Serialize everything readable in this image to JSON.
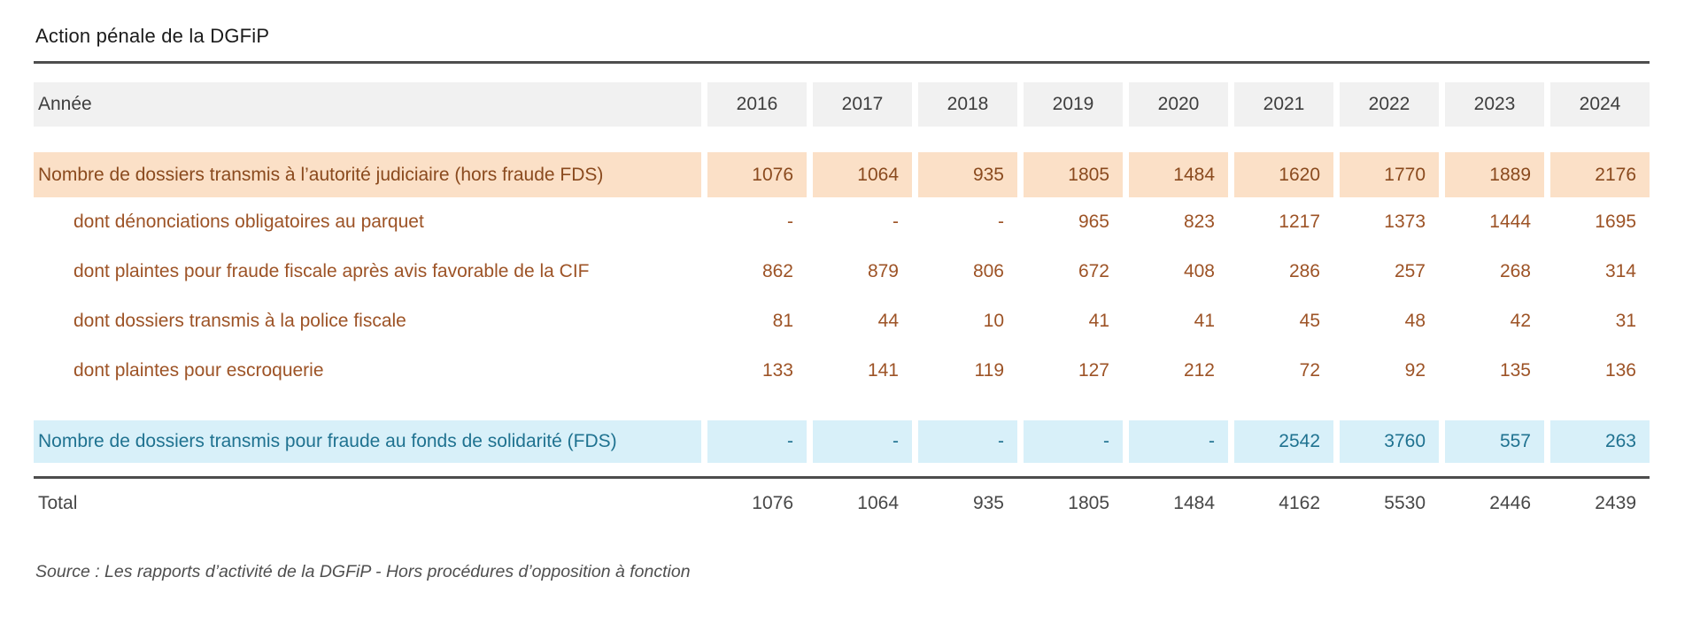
{
  "title": "Action pénale de la DGFiP",
  "source": "Source : Les rapports d’activité de la DGFiP - Hors procédures d’opposition à fonction",
  "table": {
    "year_label": "Année",
    "years": [
      "2016",
      "2017",
      "2018",
      "2019",
      "2020",
      "2021",
      "2022",
      "2023",
      "2024"
    ],
    "rows": [
      {
        "label": "Nombre de dossiers transmis à l’autorité judiciaire (hors fraude FDS)",
        "style": "orange",
        "values": [
          "1076",
          "1064",
          "935",
          "1805",
          "1484",
          "1620",
          "1770",
          "1889",
          "2176"
        ]
      },
      {
        "label": "dont dénonciations obligatoires au parquet",
        "style": "sub",
        "values": [
          "-",
          "-",
          "-",
          "965",
          "823",
          "1217",
          "1373",
          "1444",
          "1695"
        ]
      },
      {
        "label": "dont plaintes pour fraude fiscale après avis favorable de la CIF",
        "style": "sub",
        "values": [
          "862",
          "879",
          "806",
          "672",
          "408",
          "286",
          "257",
          "268",
          "314"
        ]
      },
      {
        "label": "dont dossiers transmis à la police fiscale",
        "style": "sub",
        "values": [
          "81",
          "44",
          "10",
          "41",
          "41",
          "45",
          "48",
          "42",
          "31"
        ]
      },
      {
        "label": "dont plaintes pour escroquerie",
        "style": "sub",
        "values": [
          "133",
          "141",
          "119",
          "127",
          "212",
          "72",
          "92",
          "135",
          "136"
        ]
      },
      {
        "label": "Nombre de dossiers transmis pour fraude au fonds de solidarité (FDS)",
        "style": "blue",
        "values": [
          "-",
          "-",
          "-",
          "-",
          "-",
          "2542",
          "3760",
          "557",
          "263"
        ]
      }
    ],
    "total": {
      "label": "Total",
      "values": [
        "1076",
        "1064",
        "935",
        "1805",
        "1484",
        "4162",
        "5530",
        "2446",
        "2439"
      ]
    }
  },
  "chart_data": {
    "type": "table",
    "title": "Action pénale de la DGFiP",
    "columns": [
      "Année",
      "2016",
      "2017",
      "2018",
      "2019",
      "2020",
      "2021",
      "2022",
      "2023",
      "2024"
    ],
    "series": [
      {
        "name": "Nombre de dossiers transmis à l’autorité judiciaire (hors fraude FDS)",
        "values": [
          1076,
          1064,
          935,
          1805,
          1484,
          1620,
          1770,
          1889,
          2176
        ]
      },
      {
        "name": "dont dénonciations obligatoires au parquet",
        "values": [
          null,
          null,
          null,
          965,
          823,
          1217,
          1373,
          1444,
          1695
        ]
      },
      {
        "name": "dont plaintes pour fraude fiscale après avis favorable de la CIF",
        "values": [
          862,
          879,
          806,
          672,
          408,
          286,
          257,
          268,
          314
        ]
      },
      {
        "name": "dont dossiers transmis à la police fiscale",
        "values": [
          81,
          44,
          10,
          41,
          41,
          45,
          48,
          42,
          31
        ]
      },
      {
        "name": "dont plaintes pour escroquerie",
        "values": [
          133,
          141,
          119,
          127,
          212,
          72,
          92,
          135,
          136
        ]
      },
      {
        "name": "Nombre de dossiers transmis pour fraude au fonds de solidarité (FDS)",
        "values": [
          null,
          null,
          null,
          null,
          null,
          2542,
          3760,
          557,
          263
        ]
      },
      {
        "name": "Total",
        "values": [
          1076,
          1064,
          935,
          1805,
          1484,
          4162,
          5530,
          2446,
          2439
        ]
      }
    ],
    "missing_value_marker": "-",
    "source": "Source : Les rapports d’activité de la DGFiP - Hors procédures d’opposition à fonction"
  },
  "colors": {
    "title-text": "#1b1b1b",
    "rule-color": "#4d4d4d",
    "header-bg": "#f1f1f1",
    "header-text": "#3e3e3e",
    "orange-bg": "#fbe0c7",
    "orange-text": "#8a4a1e",
    "sub-text": "#9d5326",
    "blue-bg": "#d8f0f9",
    "blue-text": "#1f7290",
    "total-text": "#474747",
    "source-text": "#4f4f4f"
  }
}
